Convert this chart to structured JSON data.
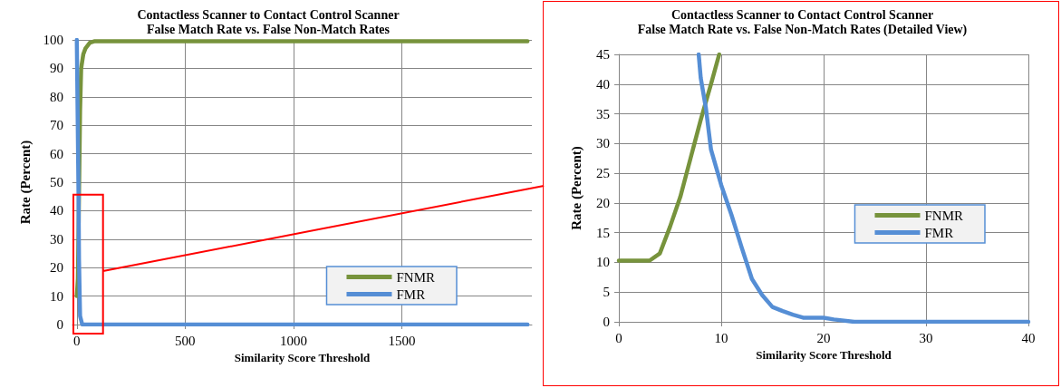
{
  "chart_data": [
    {
      "type": "line",
      "title": "Contactless Scanner to Contact Control Scanner",
      "subtitle": "False Match Rate vs. False Non-Match Rates",
      "xlabel": "Similarity Score Threshold",
      "ylabel": "Rate (Percent)",
      "xlim": [
        -20,
        2100
      ],
      "xticks": [
        0,
        500,
        1000,
        1500
      ],
      "ylim": [
        0,
        100
      ],
      "yticks": [
        0,
        10,
        20,
        30,
        40,
        50,
        60,
        70,
        80,
        90,
        100
      ],
      "grid": true,
      "legend": "bottom right",
      "marker": "none",
      "line_style": "solid",
      "series": [
        {
          "name": "FNMR",
          "color": "#77933c",
          "x": [
            0,
            5,
            10,
            15,
            20,
            30,
            40,
            60,
            80,
            2080
          ],
          "values": [
            10,
            16,
            45,
            75,
            90,
            95,
            97,
            99,
            99.5,
            99.5
          ]
        },
        {
          "name": "FMR",
          "color": "#558ed5",
          "x": [
            0,
            8,
            10,
            15,
            25,
            2080
          ],
          "values": [
            100,
            45,
            23,
            3,
            0,
            0
          ]
        }
      ]
    },
    {
      "type": "line",
      "title": "Contactless Scanner to Contact Control Scanner",
      "subtitle": "False Match Rate vs. False Non-Match Rates (Detailed View)",
      "xlabel": "Similarity Score Threshold",
      "ylabel": "Rate (Percent)",
      "xlim": [
        0,
        40
      ],
      "xticks": [
        0,
        10,
        20,
        30,
        40
      ],
      "ylim": [
        0,
        45
      ],
      "yticks": [
        0,
        5,
        10,
        15,
        20,
        25,
        30,
        35,
        40,
        45
      ],
      "grid": true,
      "legend": "right",
      "marker": "none",
      "line_style": "solid",
      "series": [
        {
          "name": "FNMR",
          "color": "#77933c",
          "x": [
            0,
            3,
            4,
            5,
            6,
            7,
            8,
            9,
            9.8
          ],
          "values": [
            10.3,
            10.3,
            11.5,
            16,
            21,
            27.5,
            34,
            40,
            45
          ]
        },
        {
          "name": "FMR",
          "color": "#558ed5",
          "x": [
            7.8,
            8,
            8.5,
            9,
            10,
            11,
            12,
            13,
            14,
            15,
            16,
            17,
            18,
            20,
            21,
            23,
            40
          ],
          "values": [
            45,
            41,
            36,
            29,
            23,
            18,
            12.5,
            7.2,
            4.5,
            2.5,
            1.8,
            1.2,
            0.7,
            0.7,
            0.4,
            0,
            0
          ]
        }
      ]
    }
  ]
}
